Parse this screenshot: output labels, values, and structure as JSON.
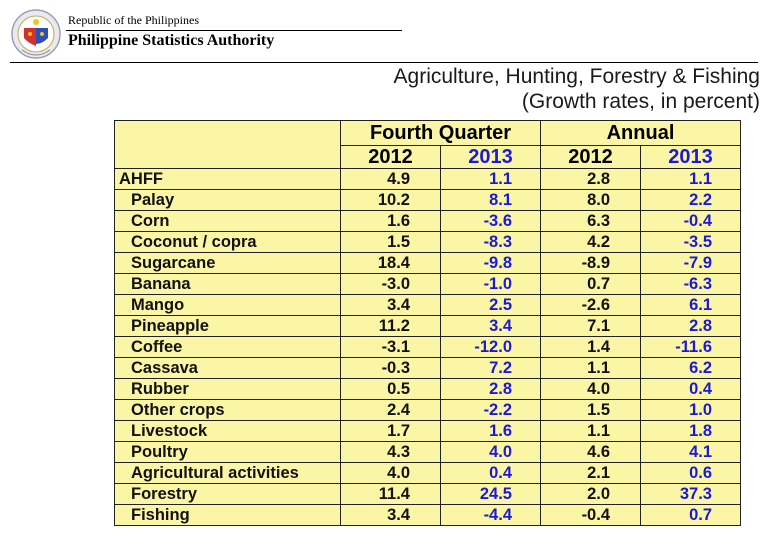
{
  "header": {
    "republic": "Republic of the Philippines",
    "agency": "Philippine Statistics Authority",
    "logo_icon": "psa-seal-icon"
  },
  "title": "Agriculture, Hunting, Forestry & Fishing",
  "subtitle": "(Growth rates, in percent)",
  "table": {
    "group_headers": [
      "Fourth Quarter",
      "Annual"
    ],
    "year_headers": [
      "2012",
      "2013",
      "2012",
      "2013"
    ],
    "rows": [
      {
        "label": "AHFF",
        "q4_2012": "4.9",
        "q4_2013": "1.1",
        "an_2012": "2.8",
        "an_2013": "1.1"
      },
      {
        "label": "Palay",
        "q4_2012": "10.2",
        "q4_2013": "8.1",
        "an_2012": "8.0",
        "an_2013": "2.2"
      },
      {
        "label": "Corn",
        "q4_2012": "1.6",
        "q4_2013": "-3.6",
        "an_2012": "6.3",
        "an_2013": "-0.4"
      },
      {
        "label": "Coconut / copra",
        "q4_2012": "1.5",
        "q4_2013": "-8.3",
        "an_2012": "4.2",
        "an_2013": "-3.5"
      },
      {
        "label": "Sugarcane",
        "q4_2012": "18.4",
        "q4_2013": "-9.8",
        "an_2012": "-8.9",
        "an_2013": "-7.9"
      },
      {
        "label": "Banana",
        "q4_2012": "-3.0",
        "q4_2013": "-1.0",
        "an_2012": "0.7",
        "an_2013": "-6.3"
      },
      {
        "label": "Mango",
        "q4_2012": "3.4",
        "q4_2013": "2.5",
        "an_2012": "-2.6",
        "an_2013": "6.1"
      },
      {
        "label": "Pineapple",
        "q4_2012": "11.2",
        "q4_2013": "3.4",
        "an_2012": "7.1",
        "an_2013": "2.8"
      },
      {
        "label": "Coffee",
        "q4_2012": "-3.1",
        "q4_2013": "-12.0",
        "an_2012": "1.4",
        "an_2013": "-11.6"
      },
      {
        "label": "Cassava",
        "q4_2012": "-0.3",
        "q4_2013": "7.2",
        "an_2012": "1.1",
        "an_2013": "6.2"
      },
      {
        "label": "Rubber",
        "q4_2012": "0.5",
        "q4_2013": "2.8",
        "an_2012": "4.0",
        "an_2013": "0.4"
      },
      {
        "label": "Other crops",
        "q4_2012": "2.4",
        "q4_2013": "-2.2",
        "an_2012": "1.5",
        "an_2013": "1.0"
      },
      {
        "label": "Livestock",
        "q4_2012": "1.7",
        "q4_2013": "1.6",
        "an_2012": "1.1",
        "an_2013": "1.8"
      },
      {
        "label": "Poultry",
        "q4_2012": "4.3",
        "q4_2013": "4.0",
        "an_2012": "4.6",
        "an_2013": "4.1"
      },
      {
        "label": "Agricultural activities",
        "q4_2012": "4.0",
        "q4_2013": "0.4",
        "an_2012": "2.1",
        "an_2013": "0.6"
      },
      {
        "label": "Forestry",
        "q4_2012": "11.4",
        "q4_2013": "24.5",
        "an_2012": "2.0",
        "an_2013": "37.3"
      },
      {
        "label": "Fishing",
        "q4_2012": "3.4",
        "q4_2013": "-4.4",
        "an_2012": "-0.4",
        "an_2013": "0.7"
      }
    ]
  },
  "colors": {
    "table_bg": "#fbf5a6",
    "year_2013": "#1a1ad6",
    "text": "#111111"
  }
}
